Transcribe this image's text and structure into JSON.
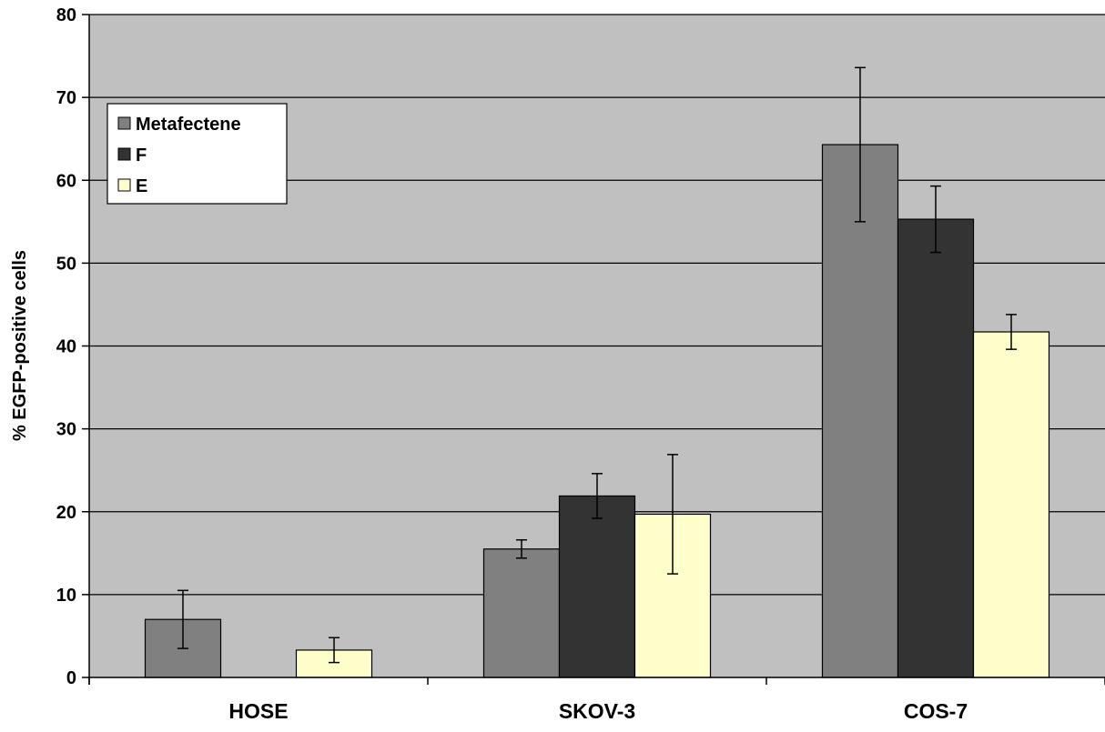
{
  "chart_data": {
    "type": "bar",
    "title": "",
    "xlabel": "",
    "ylabel": "% EGFP-positive cells",
    "ylim": [
      0,
      80
    ],
    "yticks": [
      "0",
      "10",
      "20",
      "30",
      "40",
      "50",
      "60",
      "70",
      "80"
    ],
    "grid": true,
    "legend_position": "top-left",
    "categories": [
      "HOSE",
      "SKOV-3",
      "COS-7"
    ],
    "series": [
      {
        "name": "Metafectene",
        "color": "#808080",
        "values": [
          7.0,
          15.5,
          64.3
        ],
        "error": [
          3.5,
          1.1,
          9.3
        ]
      },
      {
        "name": "F",
        "color": "#333333",
        "values": [
          0,
          21.9,
          55.3
        ],
        "error": [
          0,
          2.7,
          4.0
        ]
      },
      {
        "name": "E",
        "color": "#ffffcc",
        "values": [
          3.3,
          19.7,
          41.7
        ],
        "error": [
          1.5,
          7.2,
          2.1
        ]
      }
    ],
    "colors": {
      "plot_background": "#c0c0c0",
      "gridline": "#000000"
    }
  }
}
